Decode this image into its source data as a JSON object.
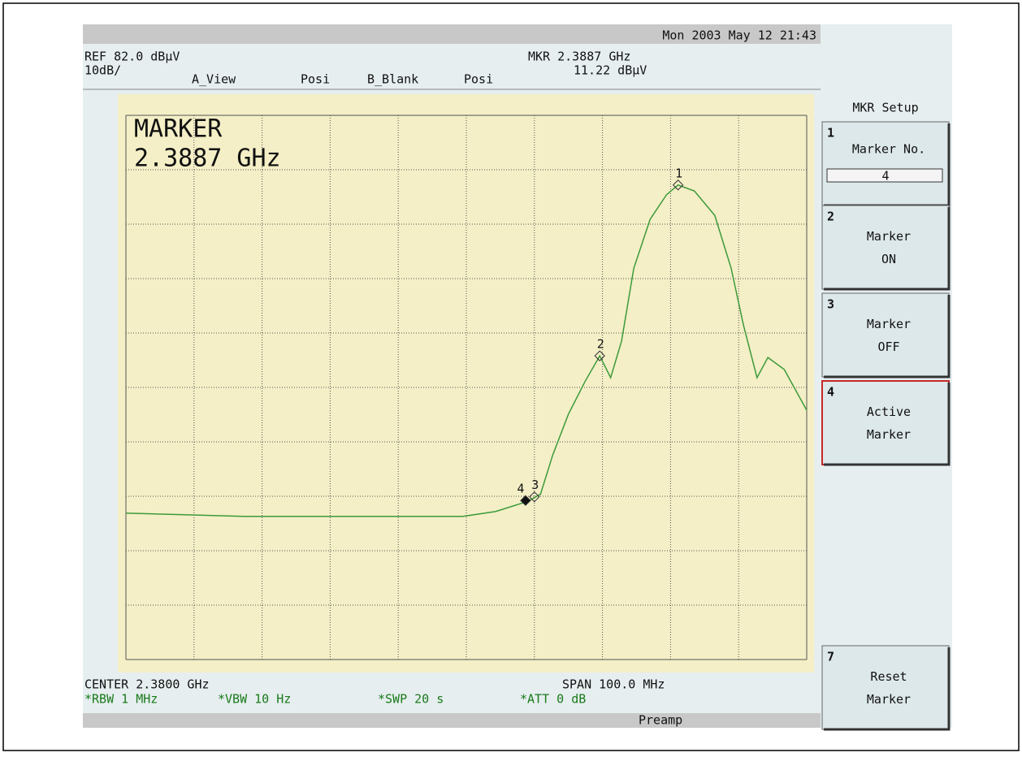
{
  "header": {
    "datetime": "Mon 2003 May 12 21:43",
    "ref": "REF 82.0 dBµV",
    "scale": "10dB/",
    "a_view": "A_View",
    "a_mode": "Posi",
    "b_view": "B_Blank",
    "b_mode": "Posi",
    "mkr_freq": "MKR 2.3887 GHz",
    "mkr_level": "11.22 dBµV"
  },
  "marker_readout": {
    "title": "MARKER",
    "freq": "2.3887 GHz"
  },
  "footer": {
    "center": "CENTER 2.3800 GHz",
    "span": "SPAN 100.0 MHz",
    "rbw": "*RBW 1 MHz",
    "vbw": "*VBW 10 Hz",
    "swp": "*SWP 20 s",
    "att": "*ATT 0 dB",
    "preamp": "Preamp"
  },
  "softkeys": {
    "title": "MKR Setup",
    "keys": [
      {
        "number": "1",
        "lines": [
          "Marker No."
        ],
        "field": "4"
      },
      {
        "number": "2",
        "lines": [
          "Marker",
          "ON"
        ]
      },
      {
        "number": "3",
        "lines": [
          "Marker",
          "OFF"
        ]
      },
      {
        "number": "4",
        "lines": [
          "Active",
          "Marker"
        ],
        "active": true
      },
      {
        "number": "7",
        "lines": [
          "Reset",
          "Marker"
        ]
      }
    ]
  },
  "trace": {
    "color": "#3c9a3c",
    "xlim": [
      2.33,
      2.43
    ],
    "ylim": [
      -18,
      82
    ],
    "xticks": [
      2.33,
      2.34,
      2.35,
      2.36,
      2.37,
      2.38,
      2.39,
      2.4,
      2.41,
      2.42,
      2.43
    ],
    "yticks": [
      -18,
      -8,
      2,
      12,
      22,
      32,
      42,
      52,
      62,
      72,
      82
    ],
    "x": [
      2.33,
      2.3473,
      2.3688,
      2.3795,
      2.3843,
      2.3891,
      2.3909,
      2.3927,
      2.395,
      2.3974,
      2.3996,
      2.4012,
      2.4028,
      2.4046,
      2.407,
      2.4094,
      2.4111,
      2.4135,
      2.4165,
      2.4189,
      2.4207,
      2.4227,
      2.4243,
      2.4267,
      2.43
    ],
    "values": [
      8.9,
      8.3,
      8.3,
      8.3,
      9.2,
      11.1,
      12.4,
      19.6,
      27.1,
      33.0,
      37.8,
      33.8,
      40.5,
      53.9,
      62.9,
      67.4,
      69.2,
      68.1,
      63.6,
      53.9,
      43.5,
      33.8,
      37.5,
      35.3,
      27.8
    ],
    "markers": [
      {
        "label": "1",
        "x": 2.4111,
        "value": 69.2
      },
      {
        "label": "2",
        "x": 2.3996,
        "value": 37.8
      },
      {
        "label": "3",
        "x": 2.39,
        "value": 11.9
      },
      {
        "label": "4",
        "x": 2.3887,
        "value": 11.22,
        "active": true
      }
    ]
  }
}
